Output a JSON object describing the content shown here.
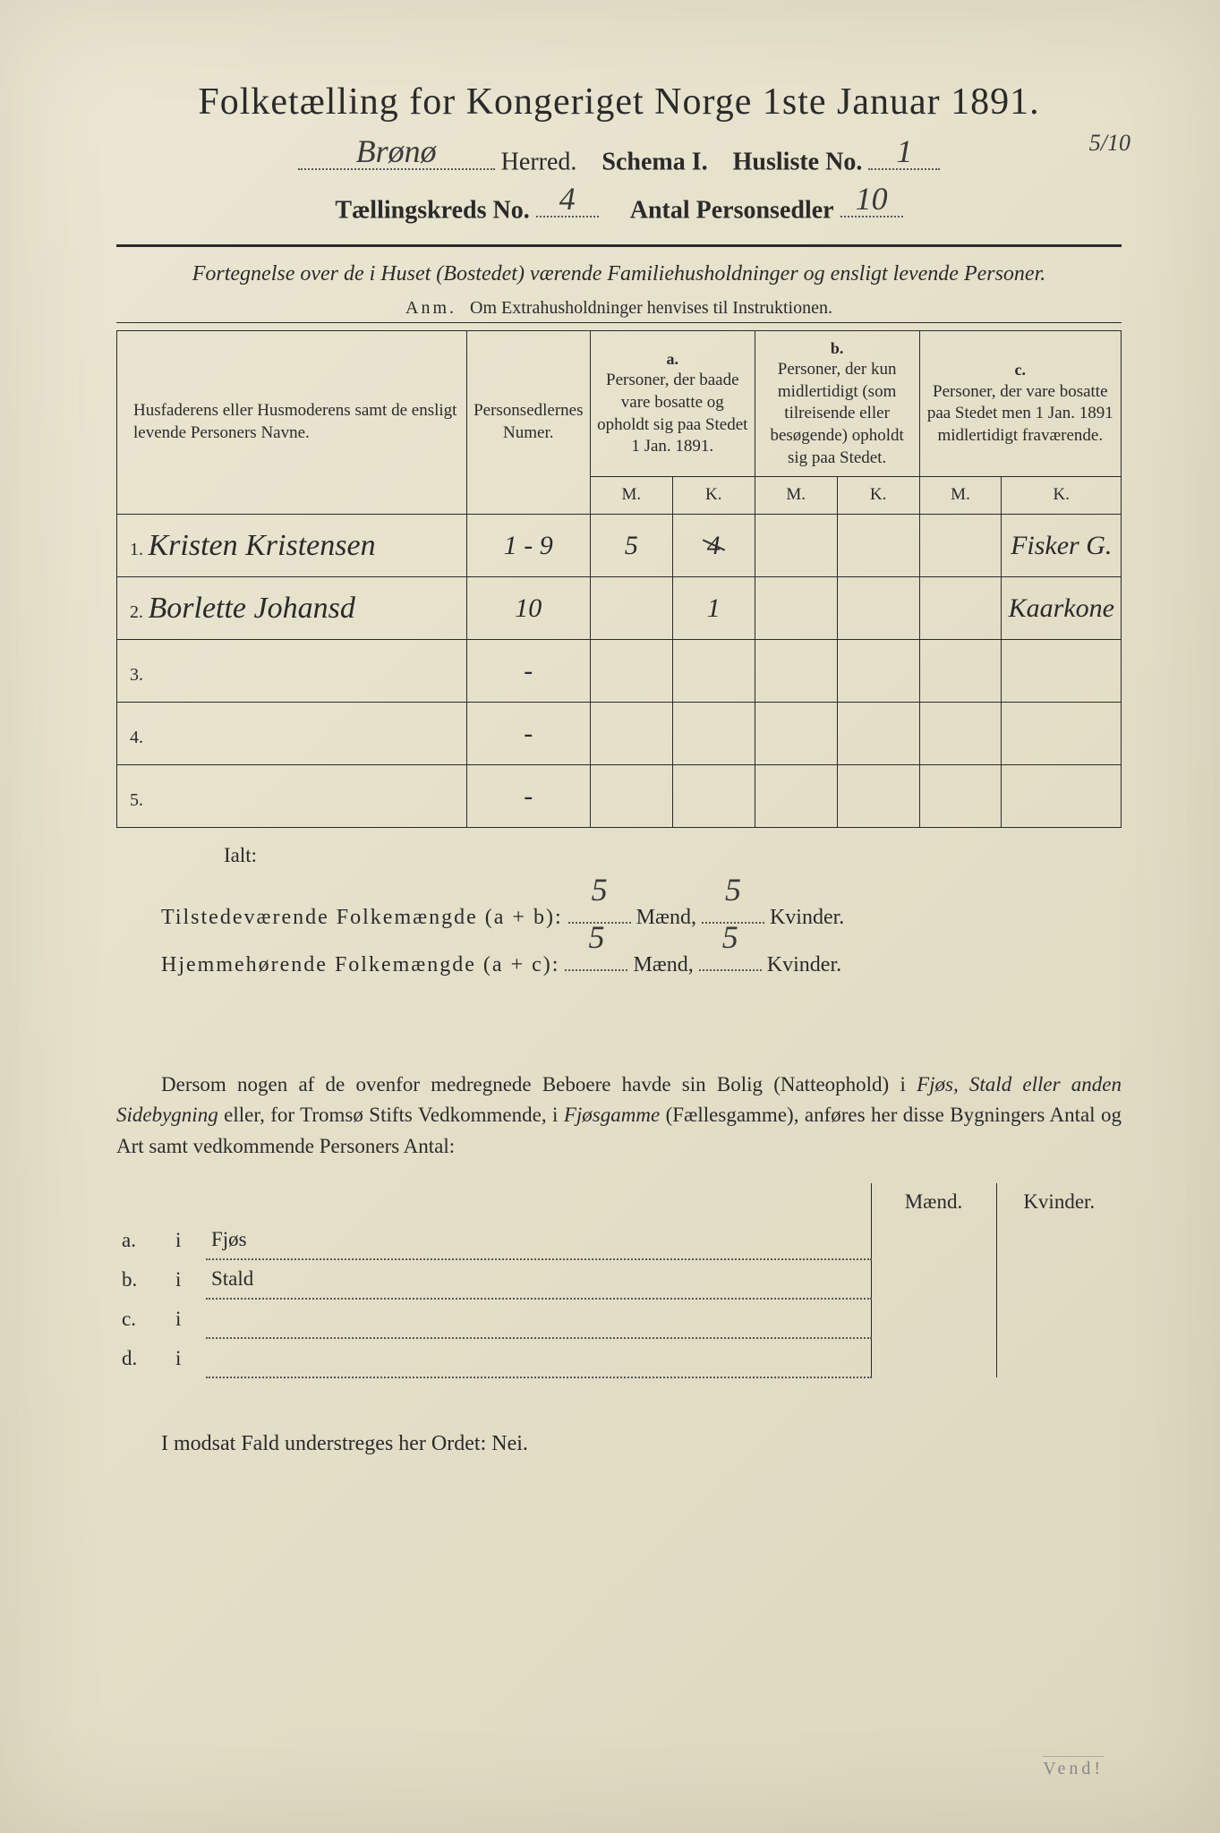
{
  "title": "Folketælling for Kongeriget Norge 1ste Januar 1891.",
  "header": {
    "herred_hw": "Brønø",
    "herred_label": "Herred.",
    "schema": "Schema I.",
    "husliste_label": "Husliste No.",
    "husliste_hw": "1",
    "corner_fraction": "5/10",
    "kreds_label": "Tællingskreds No.",
    "kreds_hw": "4",
    "antal_label": "Antal Personsedler",
    "antal_hw": "10"
  },
  "subtitle": "Fortegnelse over de i Huset (Bostedet) værende Familiehusholdninger og ensligt levende Personer.",
  "anm_prefix": "Anm.",
  "anm_text": "Om Extrahusholdninger henvises til Instruktionen.",
  "table": {
    "col_name": "Husfaderens eller Husmoderens samt de ensligt levende Personers Navne.",
    "col_num": "Personsedlernes Numer.",
    "col_a_head": "a.",
    "col_a": "Personer, der baade vare bosatte og opholdt sig paa Stedet 1 Jan. 1891.",
    "col_b_head": "b.",
    "col_b": "Personer, der kun midlertidigt (som tilreisende eller besøgende) opholdt sig paa Stedet.",
    "col_c_head": "c.",
    "col_c": "Personer, der vare bosatte paa Stedet men 1 Jan. 1891 midlertidigt fraværende.",
    "m": "M.",
    "k": "K.",
    "rows": [
      {
        "n": "1.",
        "name": "Kristen Kristensen",
        "num": "1 - 9",
        "am": "5",
        "ak": "4",
        "bm": "",
        "bk": "",
        "cm": "",
        "ck": "Fisker G."
      },
      {
        "n": "2.",
        "name": "Borlette Johansd",
        "num": "10",
        "am": "",
        "ak": "1",
        "bm": "",
        "bk": "",
        "cm": "",
        "ck": "Kaarkone"
      },
      {
        "n": "3.",
        "name": "",
        "num": "-",
        "am": "",
        "ak": "",
        "bm": "",
        "bk": "",
        "cm": "",
        "ck": ""
      },
      {
        "n": "4.",
        "name": "",
        "num": "-",
        "am": "",
        "ak": "",
        "bm": "",
        "bk": "",
        "cm": "",
        "ck": ""
      },
      {
        "n": "5.",
        "name": "",
        "num": "-",
        "am": "",
        "ak": "",
        "bm": "",
        "bk": "",
        "cm": "",
        "ck": ""
      }
    ]
  },
  "totals": {
    "ialt": "Ialt:",
    "line1_label": "Tilstedeværende Folkemængde (a + b):",
    "line2_label": "Hjemmehørende Folkemængde (a + c):",
    "maend": "Mænd,",
    "kvinder": "Kvinder.",
    "l1m": "5",
    "l1k": "5",
    "l2m": "5",
    "l2k": "5"
  },
  "para": "Dersom nogen af de ovenfor medregnede Beboere havde sin Bolig (Natteophold) i Fjøs, Stald eller anden Sidebygning eller, for Tromsø Stifts Vedkommende, i Fjøsgamme (Fællesgamme), anføres her disse Bygningers Antal og Art samt vedkommende Personers Antal:",
  "sidelist": {
    "maend": "Mænd.",
    "kvinder": "Kvinder.",
    "rows": [
      {
        "a": "a.",
        "i": "i",
        "label": "Fjøs"
      },
      {
        "a": "b.",
        "i": "i",
        "label": "Stald"
      },
      {
        "a": "c.",
        "i": "i",
        "label": ""
      },
      {
        "a": "d.",
        "i": "i",
        "label": ""
      }
    ]
  },
  "footer": "I modsat Fald understreges her Ordet: Nei.",
  "vend": "Vend!"
}
